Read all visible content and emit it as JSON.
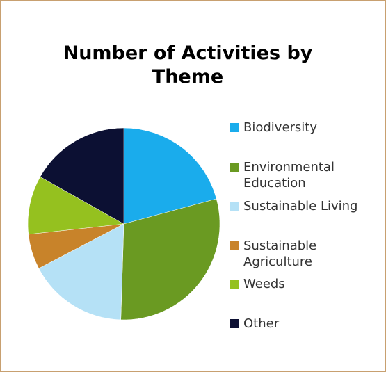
{
  "chart_data": {
    "type": "pie",
    "title": "Number of Activities by Theme",
    "legend_position": "right",
    "slices": [
      {
        "label": "Biodiversity",
        "value": 21,
        "color": "#1aacec"
      },
      {
        "label": "Environmental Education",
        "value": 30,
        "color": "#6a9a22"
      },
      {
        "label": "Sustainable Living",
        "value": 17,
        "color": "#b5e1f6"
      },
      {
        "label": "Sustainable Agriculture",
        "value": 6,
        "color": "#c8832a"
      },
      {
        "label": "Weeds",
        "value": 10,
        "color": "#95c11f"
      },
      {
        "label": "Other",
        "value": 17,
        "color": "#0c1033"
      }
    ]
  }
}
